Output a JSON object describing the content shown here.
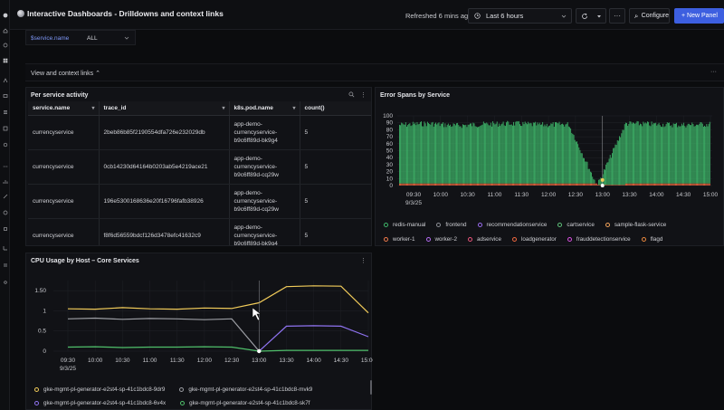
{
  "header": {
    "title": "Interactive Dashboards - Drilldowns and context links",
    "refreshed": "Refreshed 6 mins ago",
    "time_range": "Last 6 hours",
    "configure_label": "Configure",
    "new_panel_label": "+ New Panel",
    "more_label": "···"
  },
  "variable": {
    "label": "$service.name",
    "value": "ALL"
  },
  "row": {
    "title": "View and context links ⌃"
  },
  "table_panel": {
    "title": "Per service activity",
    "columns": [
      "service.name",
      "trace_id",
      "k8s.pod.name",
      "count()"
    ],
    "rows": [
      {
        "service": "currencyservice",
        "trace": "2beb86b85f2190554dfa726e232029db",
        "pod": [
          "app-demo-",
          "currencyservice-",
          "b9c6ff89d-bk9g4"
        ],
        "count": "5"
      },
      {
        "service": "currencyservice",
        "trace": "0cb14230d64164b0203ab5e4219ace21",
        "pod": [
          "app-demo-",
          "currencyservice-",
          "b9c6ff89d-cq29w"
        ],
        "count": "5"
      },
      {
        "service": "currencyservice",
        "trace": "196e5300168636e20f16796fafb38926",
        "pod": [
          "app-demo-",
          "currencyservice-",
          "b9c6ff89d-cq29w"
        ],
        "count": "5"
      },
      {
        "service": "currencyservice",
        "trace": "f8f6d56559bdcf126d3478efc41632c9",
        "pod": [
          "app-demo-",
          "currencyservice-",
          "b9c6ff89d-bk9g4"
        ],
        "count": "5"
      }
    ]
  },
  "error_panel": {
    "title": "Error Spans by Service",
    "legend": [
      {
        "name": "redis-manual",
        "color": "#3fb76a"
      },
      {
        "name": "frontend",
        "color": "#8d8f96"
      },
      {
        "name": "recommendationservice",
        "color": "#9a6cf0"
      },
      {
        "name": "cartservice",
        "color": "#5fc27a"
      },
      {
        "name": "sample-flask-service",
        "color": "#f2a35b"
      },
      {
        "name": "worker-1",
        "color": "#f07a4c"
      },
      {
        "name": "worker-2",
        "color": "#b36bf2"
      },
      {
        "name": "adservice",
        "color": "#e8547a"
      },
      {
        "name": "loadgenerator",
        "color": "#f0683f"
      },
      {
        "name": "frauddetectionservice",
        "color": "#d84fe0"
      },
      {
        "name": "flagd",
        "color": "#e8873d"
      }
    ]
  },
  "cpu_panel": {
    "title": "CPU Usage by Host – Core Services",
    "legend": [
      {
        "name": "gke-mgmt-pl-generator-e2st4-sp-41c1bdc8-9dr9",
        "color": "#f2cc5a"
      },
      {
        "name": "gke-mgmt-pl-generator-e2st4-sp-41c1bdc8-mvk9",
        "color": "#9b9da3"
      },
      {
        "name": "gke-mgmt-pl-generator-e2st4-sp-41c1bdc8-6v4x",
        "color": "#8f73f0"
      },
      {
        "name": "gke-mgmt-pl-generator-e2st4-sp-41c1bdc8-sk7f",
        "color": "#4fbf6a"
      }
    ]
  },
  "chart_data": [
    {
      "type": "bar",
      "title": "Error Spans by Service",
      "x": [
        "09:30",
        "10:00",
        "10:30",
        "11:00",
        "11:30",
        "12:00",
        "12:30",
        "13:00",
        "13:30",
        "14:00",
        "14:30",
        "15:00"
      ],
      "x_first_date": "9/3/25",
      "ylim": [
        0,
        100
      ],
      "yticks": [
        0,
        10,
        20,
        30,
        40,
        50,
        60,
        70,
        80,
        90,
        100
      ],
      "series": [
        {
          "name": "redis-manual",
          "values": [
            88,
            90,
            87,
            89,
            90,
            88,
            89,
            2,
            90,
            89,
            88,
            89
          ]
        },
        {
          "name": "loadgenerator",
          "values": [
            3,
            3,
            3,
            3,
            3,
            3,
            3,
            1,
            3,
            3,
            3,
            3
          ]
        }
      ],
      "grid": true
    },
    {
      "type": "line",
      "title": "CPU Usage by Host – Core Services",
      "x": [
        "09:30",
        "10:00",
        "10:30",
        "11:00",
        "11:30",
        "12:00",
        "12:30",
        "13:00",
        "13:30",
        "14:00",
        "14:30",
        "15:00"
      ],
      "x_first_date": "9/3/25",
      "yticks": [
        0,
        0.5,
        1,
        1.5
      ],
      "ytick_labels": [
        "0",
        "0.5",
        "1",
        "1.50"
      ],
      "ylim": [
        0,
        1.75
      ],
      "series": [
        {
          "name": "gke-mgmt-pl-generator-e2st4-sp-41c1bdc8-9dr9",
          "values": [
            1.05,
            1.04,
            1.08,
            1.05,
            1.04,
            1.07,
            1.06,
            1.2,
            1.6,
            1.62,
            1.61,
            0.95
          ]
        },
        {
          "name": "gke-mgmt-pl-generator-e2st4-sp-41c1bdc8-mvk9",
          "values": [
            0.8,
            0.82,
            0.79,
            0.81,
            0.8,
            0.78,
            0.8,
            0.0,
            null,
            null,
            null,
            null
          ]
        },
        {
          "name": "gke-mgmt-pl-generator-e2st4-sp-41c1bdc8-6v4x",
          "values": [
            null,
            null,
            null,
            null,
            null,
            null,
            null,
            0.0,
            0.62,
            0.63,
            0.62,
            0.36
          ]
        },
        {
          "name": "gke-mgmt-pl-generator-e2st4-sp-41c1bdc8-sk7f",
          "values": [
            0.1,
            0.11,
            0.09,
            0.1,
            0.1,
            0.11,
            0.1,
            0.0,
            0.02,
            0.02,
            0.02,
            0.02
          ]
        }
      ],
      "grid": true
    }
  ]
}
